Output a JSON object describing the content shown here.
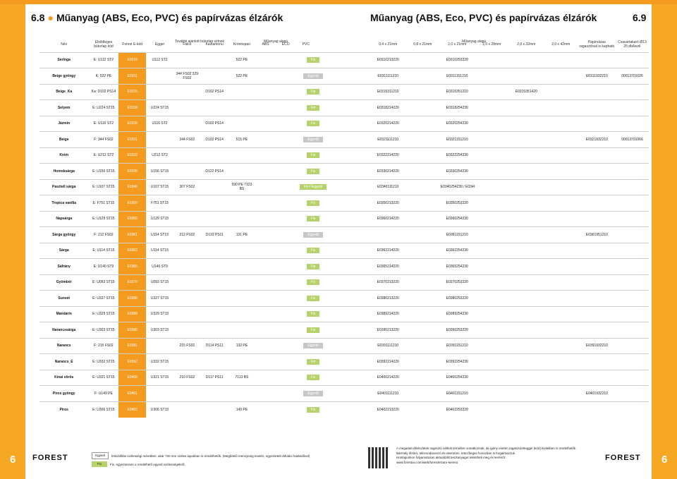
{
  "header": {
    "left_num": "6.8",
    "left_title": "Műanyag (ABS, Eco, PVC) és papírvázas élzárók",
    "right_title": "Műanyag (ABS, Eco, PVC) és papírvázas élzárók",
    "right_num": "6.9"
  },
  "columns": {
    "nev": "Név",
    "elod": "Elsődleges bútorlap kód",
    "forest": "Forest E-kód",
    "tovabbi": "További ajánlott bútorlap színek",
    "egger": "Egger",
    "falco": "Falco",
    "kastamonu": "Kastamonu",
    "kronospan": "Kronospan",
    "muanyag_alapu": "Műanyag alapú",
    "abs": "ABS",
    "eco": "ECO",
    "pvc": "PVC",
    "muanyag_alapu2": "Műanyag alapú",
    "s1": "0,4 x 21mm",
    "s2": "0,8 x 21mm",
    "s3": "2,0 x 21mm",
    "s4": "2,0 x 28mm",
    "s5": "2,0 x 32mm",
    "s6": "2,0 x 42mm",
    "papir": "Papírvázas ragasztóval is kapható",
    "csavar": "Csavartakaró Ø13 25 db/levél"
  },
  "rows": [
    {
      "name": "Seringa",
      "elod": "E: U112 ST2",
      "ecode": "E0310",
      "egger": "U112 ST2",
      "falco": "",
      "kast": "",
      "kron": "522 PE",
      "tag": "Fix",
      "s1": "E0310213220",
      "s2": "",
      "s3": "E0310253220",
      "s4": "",
      "s5": "",
      "s6": "",
      "papir": "",
      "csavar": ""
    },
    {
      "name": "Beige gyöngy",
      "elod": "K: 522 PE",
      "ecode": "E0311",
      "egger": "",
      "falco": "344 FS02 329 FS02",
      "kast": "",
      "kron": "522 PE",
      "tag": "Egyedi",
      "s1": "E0311111210",
      "s2": "",
      "s3": "E0311151210",
      "s4": "",
      "s5": "",
      "s6": "",
      "papir": "E0311932210",
      "csavar": "00013701026"
    },
    {
      "name": "Beige_Ka",
      "elod": "Ka: D102 PS14",
      "ecode": "E0315",
      "egger": "",
      "falco": "",
      "kast": "D102 PS14",
      "kron": "",
      "tag": "Fix",
      "s1": "E0315311210",
      "s2": "",
      "s3": "E0315351210",
      "s4": "",
      "s5": "E0315351420",
      "s6": "",
      "papir": "",
      "csavar": ""
    },
    {
      "name": "Selyem",
      "elod": "E: U224 ST15",
      "ecode": "E0318",
      "egger": "U224 ST15",
      "falco": "",
      "kast": "",
      "kron": "",
      "tag": "Fix",
      "s1": "E0318214220",
      "s2": "",
      "s3": "E0318254230",
      "s4": "",
      "s5": "",
      "s6": "",
      "papir": "",
      "csavar": ""
    },
    {
      "name": "Jázmin",
      "elod": "E: U116 ST2",
      "ecode": "E0320",
      "egger": "U116 ST2",
      "falco": "",
      "kast": "D102 PS14",
      "kron": "",
      "tag": "Fix",
      "s1": "E0320214220",
      "s2": "",
      "s3": "E0320254230",
      "s4": "",
      "s5": "",
      "s6": "",
      "papir": "",
      "csavar": ""
    },
    {
      "name": "Beige",
      "elod": "F: 344 FS02",
      "ecode": "E0321",
      "egger": "",
      "falco": "344 FS02",
      "kast": "D102 PS14",
      "kron": "515 PE",
      "tag": "Egyedi",
      "s1": "E0321111210",
      "s2": "",
      "s3": "E0321151210",
      "s4": "",
      "s5": "",
      "s6": "",
      "papir": "E0321932210",
      "csavar": "00013701066"
    },
    {
      "name": "Krém",
      "elod": "E: U212 ST2",
      "ecode": "E0322",
      "egger": "U212 ST2",
      "falco": "",
      "kast": "",
      "kron": "",
      "tag": "Fix",
      "s1": "E0322214220",
      "s2": "",
      "s3": "E0322254230",
      "s4": "",
      "s5": "",
      "s6": "",
      "papir": "",
      "csavar": ""
    },
    {
      "name": "Homoksárga",
      "elod": "E: U156 ST15",
      "ecode": "E0330",
      "egger": "U156 ST15",
      "falco": "",
      "kast": "D122 PS14",
      "kron": "",
      "tag": "Fix",
      "s1": "E0330214220",
      "s2": "",
      "s3": "E0330254230",
      "s4": "",
      "s5": "",
      "s6": "",
      "papir": "",
      "csavar": ""
    },
    {
      "name": "Pasztell sárga",
      "elod": "E: U107 ST15",
      "ecode": "E0340",
      "egger": "U107 ST15",
      "falco": "307 FS02",
      "kast": "",
      "kron": "590 PE 7123 BS",
      "tag": "Fix / Egyedi",
      "s1": "E0340111210",
      "s2": "",
      "s3": "E0340254230 / E0340151210",
      "s4": "",
      "s5": "",
      "s6": "",
      "papir": "",
      "csavar": ""
    },
    {
      "name": "Tropica vanília",
      "elod": "E: F751 ST15",
      "ecode": "E0350",
      "egger": "F751 ST15",
      "falco": "",
      "kast": "",
      "kron": "",
      "tag": "Fix",
      "s1": "E0350213220",
      "s2": "",
      "s3": "E0350253220",
      "s4": "",
      "s5": "",
      "s6": "",
      "papir": "",
      "csavar": ""
    },
    {
      "name": "Napsárga",
      "elod": "E: U129 ST15",
      "ecode": "E0360",
      "egger": "U129 ST15",
      "falco": "",
      "kast": "",
      "kron": "",
      "tag": "Fix",
      "s1": "E0360214220",
      "s2": "",
      "s3": "E0360254230",
      "s4": "",
      "s5": "",
      "s6": "",
      "papir": "",
      "csavar": ""
    },
    {
      "name": "Sárga gyöngy",
      "elod": "F: 212 FS02",
      "ecode": "E0361",
      "egger": "U114 ST15",
      "falco": "212 FS02",
      "kast": "D133 PS11",
      "kron": "131 PE",
      "tag": "Egyedi",
      "s1": "",
      "s2": "",
      "s3": "E0361151210",
      "s4": "",
      "s5": "",
      "s6": "",
      "papir": "E0361951210",
      "csavar": ""
    },
    {
      "name": "Sárga",
      "elod": "E: U114 ST15",
      "ecode": "E0362",
      "egger": "U114 ST15",
      "falco": "",
      "kast": "",
      "kron": "",
      "tag": "Fix",
      "s1": "E0362214220",
      "s2": "",
      "s3": "E0362254230",
      "s4": "",
      "s5": "",
      "s6": "",
      "papir": "",
      "csavar": ""
    },
    {
      "name": "Sáfrány",
      "elod": "E: U140 ST9",
      "ecode": "E0365",
      "egger": "U140 ST9",
      "falco": "",
      "kast": "",
      "kron": "",
      "tag": "Fix",
      "s1": "E0365214220",
      "s2": "",
      "s3": "E0365254230",
      "s4": "",
      "s5": "",
      "s6": "",
      "papir": "",
      "csavar": ""
    },
    {
      "name": "Gyömbér",
      "elod": "E: U093 ST15",
      "ecode": "E0370",
      "egger": "U093 ST15",
      "falco": "",
      "kast": "",
      "kron": "",
      "tag": "Fix",
      "s1": "E0370213220",
      "s2": "",
      "s3": "E0370253220",
      "s4": "",
      "s5": "",
      "s6": "",
      "papir": "",
      "csavar": ""
    },
    {
      "name": "Sunset",
      "elod": "E: U327 ST15",
      "ecode": "E0380",
      "egger": "U327 ST15",
      "falco": "",
      "kast": "",
      "kron": "",
      "tag": "Fix",
      "s1": "E0380213220",
      "s2": "",
      "s3": "E0380253220",
      "s4": "",
      "s5": "",
      "s6": "",
      "papir": "",
      "csavar": ""
    },
    {
      "name": "Mandarin",
      "elod": "E: U329 ST15",
      "ecode": "E0389",
      "egger": "U329 ST15",
      "falco": "",
      "kast": "",
      "kron": "",
      "tag": "Fix",
      "s1": "E0389214220",
      "s2": "",
      "s3": "E0389254230",
      "s4": "",
      "s5": "",
      "s6": "",
      "papir": "",
      "csavar": ""
    },
    {
      "name": "Narancssárga",
      "elod": "E: U303 ST15",
      "ecode": "E0390",
      "egger": "U303 ST15",
      "falco": "",
      "kast": "",
      "kron": "",
      "tag": "Fix",
      "s1": "E0390213220",
      "s2": "",
      "s3": "E0390253220",
      "s4": "",
      "s5": "",
      "s6": "",
      "papir": "",
      "csavar": ""
    },
    {
      "name": "Narancs",
      "elod": "F: 215 FS02",
      "ecode": "E0391",
      "egger": "",
      "falco": "215 FS02",
      "kast": "D114 PS11",
      "kron": "132 PE",
      "tag": "Egyedi",
      "s1": "E0391111210",
      "s2": "",
      "s3": "E0391151210",
      "s4": "",
      "s5": "",
      "s6": "",
      "papir": "E0391932210",
      "csavar": ""
    },
    {
      "name": "Narancs_E",
      "elod": "E: U332 ST15",
      "ecode": "E0392",
      "egger": "U332 ST15",
      "falco": "",
      "kast": "",
      "kron": "",
      "tag": "Fix",
      "s1": "E0392214220",
      "s2": "",
      "s3": "E0392254230",
      "s4": "",
      "s5": "",
      "s6": "",
      "papir": "",
      "csavar": ""
    },
    {
      "name": "Kínai vörös",
      "elod": "E: U321 ST15",
      "ecode": "E0400",
      "egger": "U321 ST15",
      "falco": "210 FS02",
      "kast": "D117 PS11",
      "kron": "7113 BS",
      "tag": "Fix",
      "s1": "E0400214220",
      "s2": "",
      "s3": "E0400254230",
      "s4": "",
      "s5": "",
      "s6": "",
      "papir": "",
      "csavar": ""
    },
    {
      "name": "Piros gyöngy",
      "elod": "F: U149 PE",
      "ecode": "E0401",
      "egger": "",
      "falco": "",
      "kast": "",
      "kron": "",
      "tag": "Egyedi",
      "s1": "E0401111210",
      "s2": "",
      "s3": "E0401151210",
      "s4": "",
      "s5": "",
      "s6": "",
      "papir": "E0401932210",
      "csavar": ""
    },
    {
      "name": "Piros",
      "elod": "E: U306 ST15",
      "ecode": "E0402",
      "egger": "U306 ST15",
      "falco": "",
      "kast": "",
      "kron": "149 PE",
      "tag": "Fix",
      "s1": "E0402213220",
      "s2": "",
      "s3": "E0402253220",
      "s4": "",
      "s5": "",
      "s6": "",
      "papir": "",
      "csavar": ""
    }
  ],
  "legend": {
    "egyedi_tag": "Egyedi",
    "egyedi_text": "felszállítás szélességi méretben, akár 720 mm széles lapokban is rendelhetők. (Megfelelő mennyiség esetén, egyeztetett átfutási határidővel)",
    "fix_tag": "Fix",
    "fix_text": "Fix, egyeztessen a rendelhető egyedi szélességekről."
  },
  "note": {
    "l1": "A megadott élkészletek ragasztó nélküli termékre vonatkoznak, de igény esetén ragasztóréteggel (kód) kivitelben is rendelhetők.",
    "l2": "Bármely élzáró, telecsodavonzó és elemmen, tetszőleges hosszban is forgalmazzuk.",
    "l3": "Honlapunkon folyamatosan aktualizált tesztanyagot tekintheti meg és keresőt:",
    "l4": "www.forestou.com/web/forest/elzaro-kereso"
  },
  "logo": "FOREST",
  "pages": {
    "left": "6",
    "right": "6"
  },
  "colors": {
    "accent": "#f39a1f",
    "fix": "#b5d36a",
    "egyedi": "#c7c7c7"
  }
}
